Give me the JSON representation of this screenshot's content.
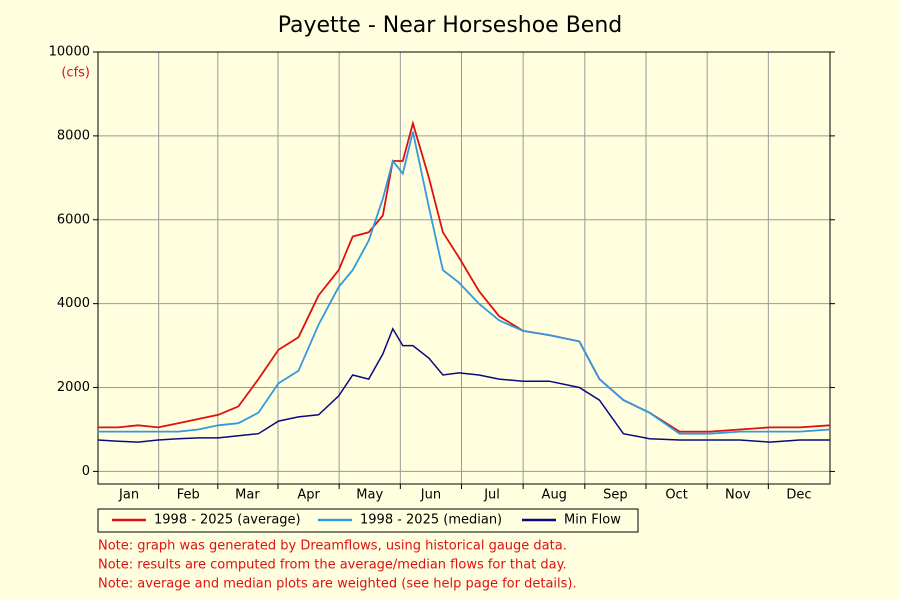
{
  "chart_data": {
    "type": "line",
    "title": "Payette - Near Horseshoe Bend",
    "y_label": "(cfs)",
    "x": [
      0,
      10,
      20,
      30,
      40,
      50,
      60,
      70,
      80,
      90,
      100,
      110,
      120,
      127,
      135,
      142,
      147,
      152,
      157,
      165,
      172,
      180,
      190,
      200,
      212,
      225,
      240,
      250,
      262,
      275,
      290,
      305,
      320,
      335,
      350,
      365
    ],
    "series": [
      {
        "name": "1998 - 2025 (average)",
        "color": "#dd1111",
        "values": [
          1050,
          1050,
          1100,
          1050,
          1150,
          1250,
          1350,
          1550,
          2200,
          2900,
          3200,
          4200,
          4800,
          5600,
          5700,
          6100,
          7400,
          7400,
          8300,
          7000,
          5700,
          5100,
          4300,
          3700,
          3350,
          3250,
          3100,
          2200,
          1700,
          1400,
          950,
          950,
          1000,
          1050,
          1050,
          1100
        ]
      },
      {
        "name": "1998 - 2025 (median)",
        "color": "#3399dd",
        "values": [
          950,
          950,
          950,
          950,
          950,
          1000,
          1100,
          1150,
          1400,
          2100,
          2400,
          3500,
          4400,
          4800,
          5500,
          6500,
          7400,
          7100,
          8100,
          6300,
          4800,
          4500,
          4000,
          3600,
          3350,
          3250,
          3100,
          2200,
          1700,
          1400,
          900,
          900,
          950,
          950,
          950,
          1000
        ]
      },
      {
        "name": "Min Flow",
        "color": "#0a0a80",
        "values": [
          750,
          720,
          700,
          750,
          780,
          800,
          800,
          850,
          900,
          1200,
          1300,
          1350,
          1800,
          2300,
          2200,
          2800,
          3400,
          3000,
          3000,
          2700,
          2300,
          2350,
          2300,
          2200,
          2150,
          2150,
          2000,
          1700,
          900,
          780,
          750,
          750,
          750,
          700,
          750,
          750
        ]
      }
    ],
    "xlim": [
      0,
      365
    ],
    "xticks": [
      {
        "value": 15.5,
        "label": "Jan"
      },
      {
        "value": 45,
        "label": "Feb"
      },
      {
        "value": 74.5,
        "label": "Mar"
      },
      {
        "value": 105,
        "label": "Apr"
      },
      {
        "value": 135.5,
        "label": "May"
      },
      {
        "value": 166,
        "label": "Jun"
      },
      {
        "value": 196.5,
        "label": "Jul"
      },
      {
        "value": 227.5,
        "label": "Aug"
      },
      {
        "value": 258,
        "label": "Sep"
      },
      {
        "value": 288.5,
        "label": "Oct"
      },
      {
        "value": 319,
        "label": "Nov"
      },
      {
        "value": 349.5,
        "label": "Dec"
      }
    ],
    "ylim": [
      -300,
      10000
    ],
    "yticks": [
      0,
      2000,
      4000,
      6000,
      8000,
      10000
    ],
    "grid": true,
    "legend": "bottom",
    "notes": [
      "Note: graph was generated by Dreamflows, using historical gauge data.",
      "Note: results are computed from the average/median flows for that day.",
      "Note: average and median plots are weighted (see help page for details)."
    ]
  }
}
